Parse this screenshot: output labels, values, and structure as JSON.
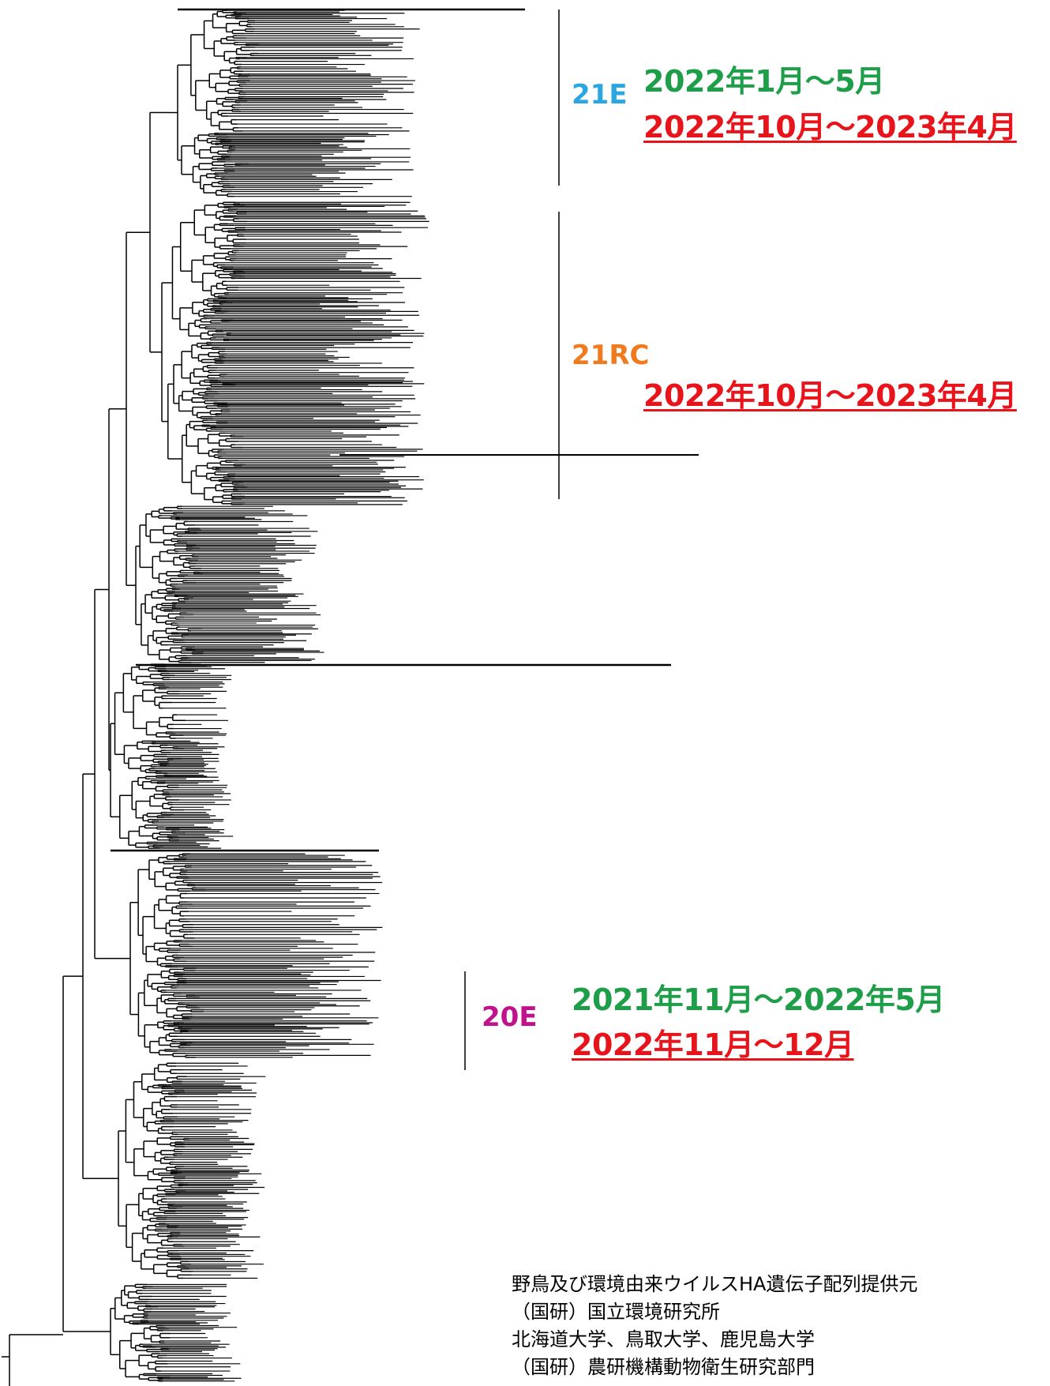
{
  "colors": {
    "e21": "#2aa6e0",
    "rc21": "#f07a1e",
    "e20": "#c0128c",
    "green": "#1f9e4a",
    "red": "#e8141c"
  },
  "clades": {
    "e21": {
      "label": "21E",
      "period_green": "2022年1月～5月",
      "period_red": "2022年10月～2023年4月"
    },
    "rc21": {
      "label": "21RC",
      "period_red": "2022年10月～2023年4月"
    },
    "e20": {
      "label": "20E",
      "period_green": "2021年11月～2022年5月",
      "period_red": "2022年11月～12月"
    }
  },
  "credits": [
    "野鳥及び環境由来ウイルスHA遺伝子配列提供元",
    "（国研）国立環境研究所",
    "北海道大学、鳥取大学、鹿児島大学",
    "（国研）農研機構動物衛生研究部門"
  ]
}
